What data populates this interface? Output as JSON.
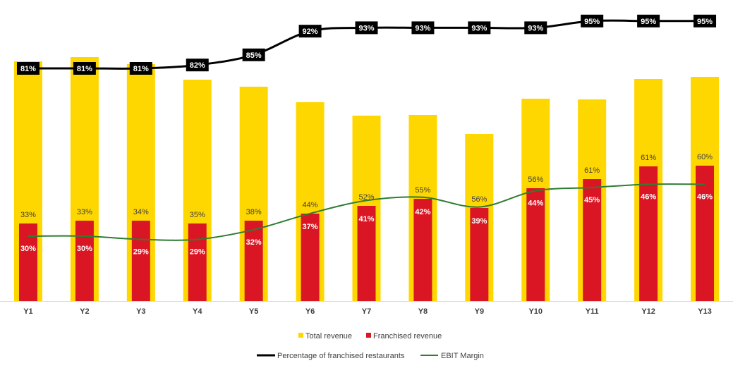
{
  "chart_data": {
    "type": "bar",
    "title": "",
    "categories": [
      "Y1",
      "Y2",
      "Y3",
      "Y4",
      "Y5",
      "Y6",
      "Y7",
      "Y8",
      "Y9",
      "Y10",
      "Y11",
      "Y12",
      "Y13"
    ],
    "series": [
      {
        "name": "Total revenue",
        "kind": "bar",
        "color": "#FFD700",
        "values": [
          340,
          346,
          336,
          314,
          304,
          282,
          263,
          264,
          237,
          287,
          286,
          315,
          318
        ]
      },
      {
        "name": "Franchised revenue",
        "kind": "bar",
        "color": "#DA1624",
        "values": [
          110,
          114,
          114,
          110,
          114,
          124,
          135,
          145,
          132,
          160,
          173,
          191,
          192
        ],
        "top_labels": [
          "33%",
          "33%",
          "34%",
          "35%",
          "38%",
          "44%",
          "52%",
          "55%",
          "56%",
          "56%",
          "61%",
          "61%",
          "60%"
        ],
        "inner_labels": [
          "30%",
          "30%",
          "29%",
          "29%",
          "32%",
          "37%",
          "41%",
          "42%",
          "39%",
          "44%",
          "45%",
          "46%",
          "46%"
        ]
      },
      {
        "name": "Percentage of franchised restaurants",
        "kind": "line",
        "color": "#000000",
        "values": [
          81,
          81,
          81,
          82,
          85,
          92,
          93,
          93,
          93,
          93,
          95,
          95,
          95
        ],
        "labels": [
          "81%",
          "81%",
          "81%",
          "82%",
          "85%",
          "92%",
          "93%",
          "93%",
          "93%",
          "93%",
          "95%",
          "95%",
          "95%"
        ]
      },
      {
        "name": "EBIT Margin",
        "kind": "line",
        "color": "#2E7D32",
        "values": [
          30,
          30,
          29,
          29,
          32,
          37,
          41,
          42,
          39,
          44,
          45,
          46,
          46
        ]
      }
    ],
    "legend": {
      "row1": [
        "Total revenue",
        "Franchised revenue"
      ],
      "row2": [
        "Percentage of franchised restaurants",
        "EBIT Margin"
      ],
      "position": "bottom"
    },
    "xlabel": "",
    "ylabel": "",
    "grid": false
  }
}
